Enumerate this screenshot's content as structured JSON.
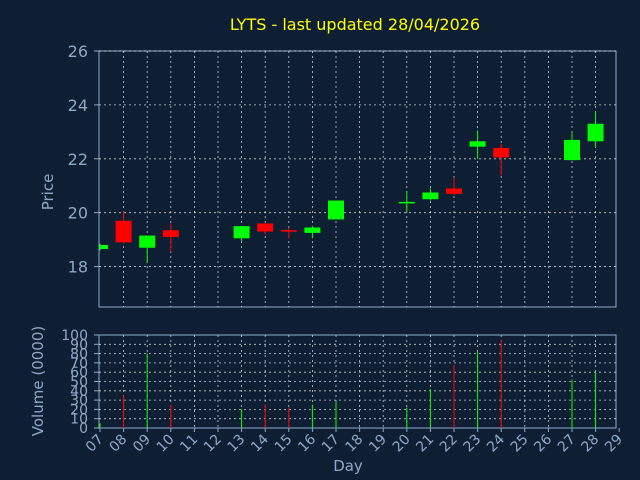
{
  "chart_data": {
    "type": "candlestick",
    "title": "LYTS - last updated 28/04/2026",
    "xlabel": "Day",
    "ylabel": "Price",
    "volume_label": "Volume (0000)",
    "grid": true,
    "colors": {
      "background": "#0f1f33",
      "axis": "#8fa8c8",
      "title": "#ffff00",
      "grid": "#ffffff",
      "up": "#00ff00",
      "down": "#ff0000"
    },
    "ylim": [
      16.5,
      26
    ],
    "yticks": [
      "18",
      "20",
      "22",
      "24",
      "26"
    ],
    "volume_ylim": [
      0,
      100
    ],
    "volume_ticks": [
      "0",
      "10",
      "20",
      "30",
      "40",
      "50",
      "60",
      "70",
      "80",
      "90",
      "100"
    ],
    "x_ticks": [
      "07",
      "08",
      "09",
      "10",
      "11",
      "12",
      "13",
      "14",
      "15",
      "16",
      "17",
      "18",
      "19",
      "20",
      "21",
      "22",
      "23",
      "24",
      "25",
      "26",
      "27",
      "28",
      "29"
    ],
    "candles": [
      {
        "day": "07",
        "open": 18.65,
        "high": 18.85,
        "low": 18.6,
        "close": 18.8,
        "volume": 5
      },
      {
        "day": "08",
        "open": 19.7,
        "high": 20.05,
        "low": 18.85,
        "close": 18.9,
        "volume": 35
      },
      {
        "day": "09",
        "open": 18.7,
        "high": 19.15,
        "low": 18.15,
        "close": 19.15,
        "volume": 80
      },
      {
        "day": "10",
        "open": 19.35,
        "high": 19.6,
        "low": 18.55,
        "close": 19.1,
        "volume": 25
      },
      {
        "day": "13",
        "open": 19.05,
        "high": 19.5,
        "low": 18.95,
        "close": 19.5,
        "volume": 20
      },
      {
        "day": "14",
        "open": 19.6,
        "high": 19.6,
        "low": 19.2,
        "close": 19.3,
        "volume": 25
      },
      {
        "day": "15",
        "open": 19.35,
        "high": 19.45,
        "low": 19.05,
        "close": 19.3,
        "volume": 22
      },
      {
        "day": "16",
        "open": 19.25,
        "high": 19.5,
        "low": 19.05,
        "close": 19.45,
        "volume": 25
      },
      {
        "day": "17",
        "open": 19.75,
        "high": 20.45,
        "low": 19.75,
        "close": 20.45,
        "volume": 28
      },
      {
        "day": "20",
        "open": 20.35,
        "high": 20.8,
        "low": 20.05,
        "close": 20.4,
        "volume": 22
      },
      {
        "day": "21",
        "open": 20.5,
        "high": 20.9,
        "low": 20.45,
        "close": 20.75,
        "volume": 42
      },
      {
        "day": "22",
        "open": 20.9,
        "high": 21.3,
        "low": 20.65,
        "close": 20.7,
        "volume": 68
      },
      {
        "day": "23",
        "open": 22.45,
        "high": 23.05,
        "low": 22.0,
        "close": 22.65,
        "volume": 82
      },
      {
        "day": "24",
        "open": 22.4,
        "high": 22.55,
        "low": 21.4,
        "close": 22.05,
        "volume": 95
      },
      {
        "day": "27",
        "open": 21.95,
        "high": 22.95,
        "low": 21.95,
        "close": 22.7,
        "volume": 52
      },
      {
        "day": "28",
        "open": 22.65,
        "high": 23.75,
        "low": 22.45,
        "close": 23.3,
        "volume": 60
      }
    ]
  }
}
